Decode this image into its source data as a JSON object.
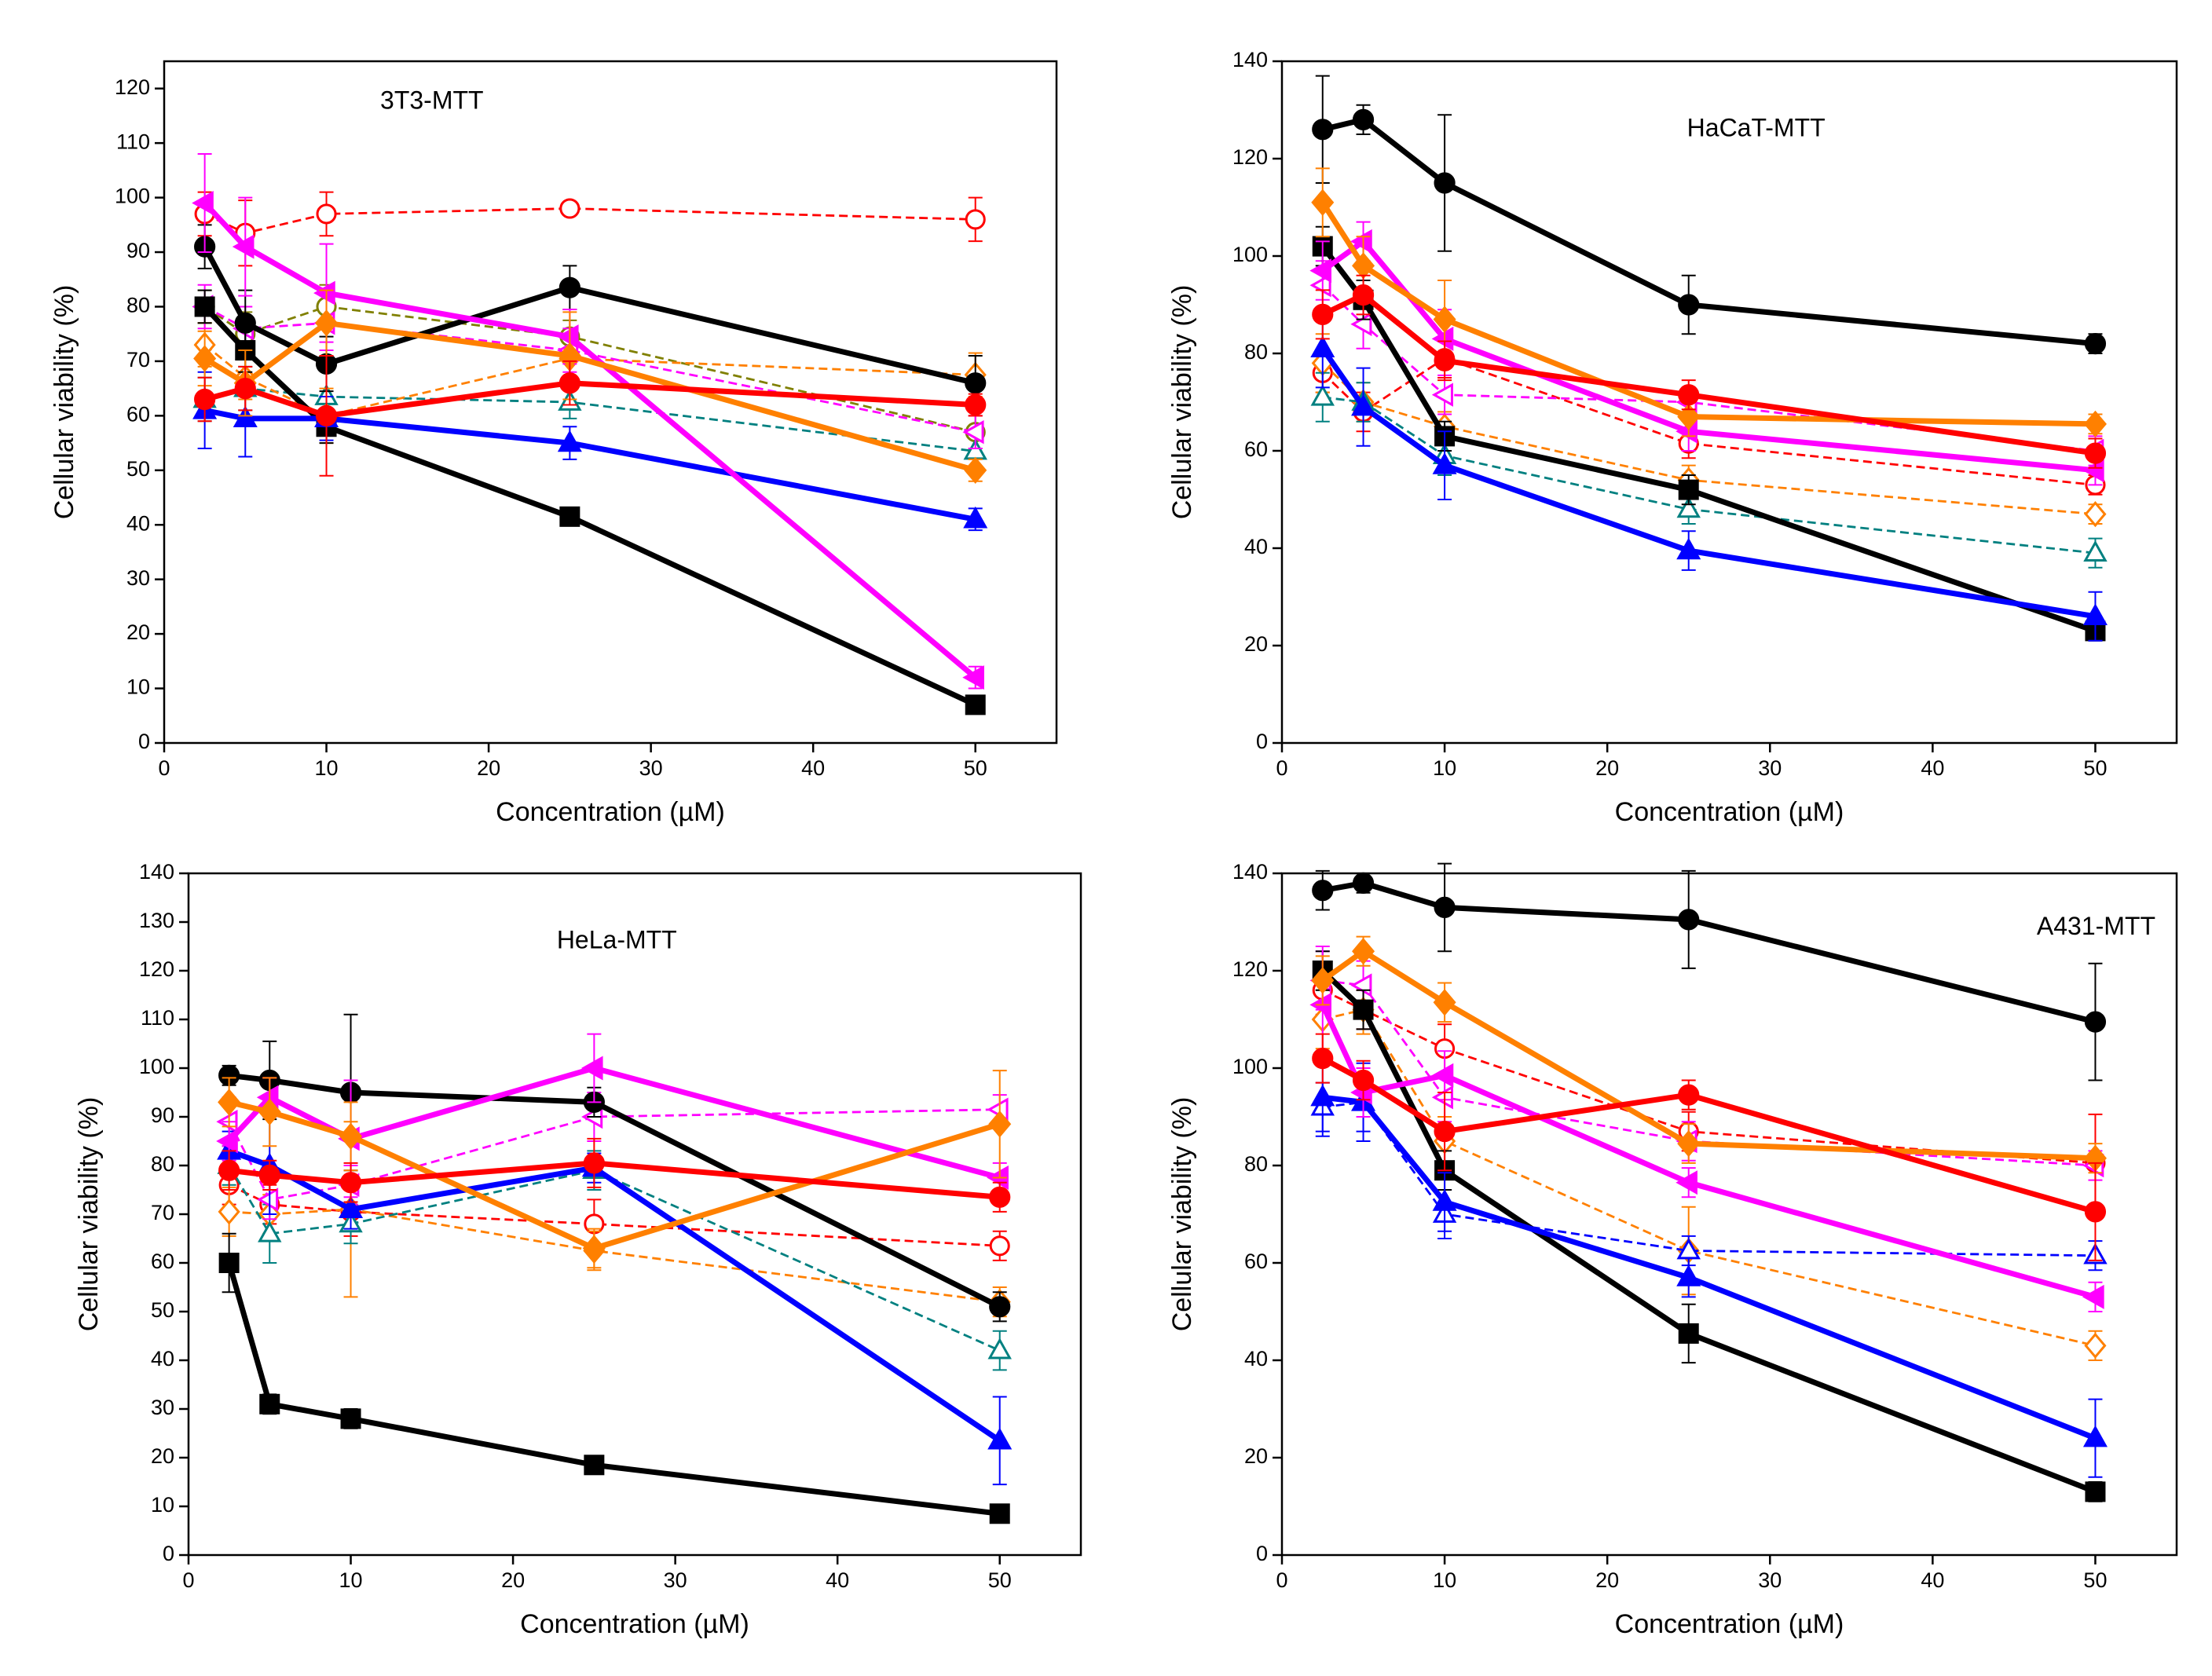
{
  "chart_data": [
    {
      "type": "line",
      "title": "3T3-MTT",
      "x_label": "Concentration (µM)",
      "y_label": "Cellular viability (%)",
      "x": [
        2.5,
        5,
        10,
        25,
        50
      ],
      "xlim": [
        0,
        55
      ],
      "xticks": [
        0,
        10,
        20,
        30,
        40,
        50
      ],
      "ylim": [
        0,
        125
      ],
      "yticks": [
        0,
        10,
        20,
        30,
        40,
        50,
        60,
        70,
        80,
        90,
        100,
        110,
        120
      ],
      "series": [
        {
          "color": "#ff0000",
          "marker": "circle",
          "filled": false,
          "dashed": true,
          "values": [
            97,
            93.5,
            97,
            98,
            96
          ],
          "errors": [
            4,
            6,
            4,
            1,
            4
          ]
        },
        {
          "color": "#808000",
          "marker": "circle",
          "filled": false,
          "dashed": true,
          "values": [
            80,
            75,
            80,
            74.5,
            57
          ],
          "errors": [
            3,
            4,
            4,
            3,
            3
          ]
        },
        {
          "color": "#008080",
          "marker": "triangle",
          "filled": false,
          "dashed": true,
          "values": [
            63,
            65,
            63.5,
            62.5,
            53.5
          ],
          "errors": [
            4,
            4,
            5,
            3,
            3
          ]
        },
        {
          "color": "#ff8000",
          "marker": "diamond",
          "filled": false,
          "dashed": true,
          "values": [
            73,
            67,
            60,
            70.5,
            67.5
          ],
          "errors": [
            4,
            4,
            5,
            4,
            4
          ]
        },
        {
          "color": "#ff00ff",
          "marker": "left-triangle",
          "filled": false,
          "dashed": true,
          "values": [
            80,
            76,
            77,
            72,
            57
          ],
          "errors": [
            4,
            4,
            5,
            4,
            3
          ]
        },
        {
          "color": "#000000",
          "marker": "square",
          "filled": true,
          "dashed": false,
          "values": [
            80,
            72,
            58,
            41.5,
            7
          ],
          "errors": [
            3,
            4,
            3,
            1,
            1
          ]
        },
        {
          "color": "#000000",
          "marker": "circle",
          "filled": true,
          "dashed": false,
          "values": [
            91,
            77,
            69.5,
            83.5,
            66
          ],
          "errors": [
            4,
            6,
            5,
            4,
            5
          ]
        },
        {
          "color": "#0000ff",
          "marker": "triangle",
          "filled": true,
          "dashed": false,
          "values": [
            61,
            59.5,
            59.5,
            55,
            41
          ],
          "errors": [
            7,
            7,
            4,
            3,
            2
          ]
        },
        {
          "color": "#ff00ff",
          "marker": "left-triangle",
          "filled": true,
          "dashed": false,
          "values": [
            99,
            91,
            82.5,
            74.5,
            12
          ],
          "errors": [
            9,
            9,
            9,
            5,
            2
          ]
        },
        {
          "color": "#ff8000",
          "marker": "diamond",
          "filled": true,
          "dashed": false,
          "values": [
            70.5,
            66,
            77,
            71,
            50
          ],
          "errors": [
            5,
            6,
            6,
            8,
            2
          ]
        },
        {
          "color": "#ff0000",
          "marker": "circle",
          "filled": true,
          "dashed": false,
          "values": [
            63,
            65,
            60,
            66,
            62
          ],
          "errors": [
            4,
            4,
            11,
            4,
            2
          ]
        }
      ]
    },
    {
      "type": "line",
      "title": "HaCaT-MTT",
      "x_label": "Concentration (µM)",
      "y_label": "Cellular viability (%)",
      "x": [
        2.5,
        5,
        10,
        25,
        50
      ],
      "xlim": [
        0,
        55
      ],
      "xticks": [
        0,
        10,
        20,
        30,
        40,
        50
      ],
      "ylim": [
        0,
        140
      ],
      "yticks": [
        0,
        20,
        40,
        60,
        80,
        100,
        120,
        140
      ],
      "series": [
        {
          "color": "#ff0000",
          "marker": "circle",
          "filled": false,
          "dashed": true,
          "values": [
            76,
            68,
            79,
            61.5,
            53
          ],
          "errors": [
            4,
            4,
            4,
            3,
            2
          ]
        },
        {
          "color": "#ff8000",
          "marker": "diamond",
          "filled": false,
          "dashed": true,
          "values": [
            78,
            70,
            65,
            54,
            47
          ],
          "errors": [
            6,
            4,
            3,
            3,
            2
          ]
        },
        {
          "color": "#008080",
          "marker": "triangle",
          "filled": false,
          "dashed": true,
          "values": [
            71,
            70,
            59,
            48,
            39
          ],
          "errors": [
            5,
            4,
            4,
            3,
            3
          ]
        },
        {
          "color": "#ff00ff",
          "marker": "left-triangle",
          "filled": false,
          "dashed": true,
          "values": [
            94,
            86,
            71.5,
            70,
            60
          ],
          "errors": [
            5,
            5,
            4,
            3,
            3
          ]
        },
        {
          "color": "#000000",
          "marker": "square",
          "filled": true,
          "dashed": false,
          "values": [
            102,
            91,
            63,
            52,
            23
          ],
          "errors": [
            4,
            4,
            3,
            3,
            2
          ]
        },
        {
          "color": "#000000",
          "marker": "circle",
          "filled": true,
          "dashed": false,
          "values": [
            126,
            128,
            115,
            90,
            82
          ],
          "errors": [
            11,
            3,
            14,
            6,
            2
          ]
        },
        {
          "color": "#0000ff",
          "marker": "triangle",
          "filled": true,
          "dashed": false,
          "values": [
            81,
            69,
            57,
            39.5,
            26
          ],
          "errors": [
            8,
            8,
            7,
            4,
            5
          ]
        },
        {
          "color": "#ff00ff",
          "marker": "left-triangle",
          "filled": true,
          "dashed": false,
          "values": [
            97,
            103,
            83,
            64,
            56
          ],
          "errors": [
            6,
            4,
            6,
            4,
            3
          ]
        },
        {
          "color": "#ff8000",
          "marker": "diamond",
          "filled": true,
          "dashed": false,
          "values": [
            111,
            98,
            87,
            67,
            65.5
          ],
          "errors": [
            7,
            6,
            8,
            4,
            2
          ]
        },
        {
          "color": "#ff0000",
          "marker": "circle",
          "filled": true,
          "dashed": false,
          "values": [
            88,
            92,
            78.5,
            71.5,
            59.5
          ],
          "errors": [
            5,
            4,
            4,
            3,
            3
          ]
        }
      ]
    },
    {
      "type": "line",
      "title": "HeLa-MTT",
      "x_label": "Concentration (µM)",
      "y_label": "Cellular viability (%)",
      "x": [
        2.5,
        5,
        10,
        25,
        50
      ],
      "xlim": [
        0,
        55
      ],
      "xticks": [
        0,
        10,
        20,
        30,
        40,
        50
      ],
      "ylim": [
        0,
        140
      ],
      "yticks": [
        0,
        10,
        20,
        30,
        40,
        50,
        60,
        70,
        80,
        90,
        100,
        110,
        120,
        130,
        140
      ],
      "series": [
        {
          "color": "#ff0000",
          "marker": "circle",
          "filled": false,
          "dashed": true,
          "values": [
            76,
            72,
            70.5,
            68,
            63.5
          ],
          "errors": [
            4,
            4,
            5,
            5,
            3
          ]
        },
        {
          "color": "#ff8000",
          "marker": "diamond",
          "filled": false,
          "dashed": true,
          "values": [
            70.5,
            70,
            71,
            62.5,
            52
          ],
          "errors": [
            5,
            4,
            18,
            4,
            3
          ]
        },
        {
          "color": "#008080",
          "marker": "triangle",
          "filled": false,
          "dashed": true,
          "values": [
            80,
            66,
            68,
            79,
            42
          ],
          "errors": [
            4,
            6,
            4,
            4,
            4
          ]
        },
        {
          "color": "#ff00ff",
          "marker": "left-triangle",
          "filled": false,
          "dashed": true,
          "values": [
            89,
            73,
            76,
            90,
            91.5
          ],
          "errors": [
            5,
            4,
            4,
            5,
            3
          ]
        },
        {
          "color": "#000000",
          "marker": "square",
          "filled": true,
          "dashed": false,
          "values": [
            60,
            31,
            28,
            18.5,
            8.5
          ],
          "errors": [
            6,
            2,
            2,
            1,
            1
          ]
        },
        {
          "color": "#000000",
          "marker": "circle",
          "filled": true,
          "dashed": false,
          "values": [
            98.5,
            97.5,
            95,
            93,
            51
          ],
          "errors": [
            2,
            8,
            16,
            3,
            3
          ]
        },
        {
          "color": "#0000ff",
          "marker": "triangle",
          "filled": true,
          "dashed": false,
          "values": [
            83,
            80,
            71,
            79.5,
            23.5
          ],
          "errors": [
            4,
            10,
            4,
            3,
            9
          ]
        },
        {
          "color": "#ff00ff",
          "marker": "left-triangle",
          "filled": true,
          "dashed": false,
          "values": [
            85,
            94,
            85.5,
            100,
            77.5
          ],
          "errors": [
            4,
            4,
            12,
            7,
            3
          ]
        },
        {
          "color": "#ff8000",
          "marker": "diamond",
          "filled": true,
          "dashed": false,
          "values": [
            93,
            91,
            86,
            63,
            88.5
          ],
          "errors": [
            5,
            7,
            7,
            4,
            11
          ]
        },
        {
          "color": "#ff0000",
          "marker": "circle",
          "filled": true,
          "dashed": false,
          "values": [
            79,
            78,
            76.5,
            80.5,
            73.5
          ],
          "errors": [
            4,
            3,
            4,
            5,
            3
          ]
        }
      ]
    },
    {
      "type": "line",
      "title": "A431-MTT",
      "x_label": "Concentration (µM)",
      "y_label": "Cellular viability (%)",
      "x": [
        2.5,
        5,
        10,
        25,
        50
      ],
      "xlim": [
        0,
        55
      ],
      "xticks": [
        0,
        10,
        20,
        30,
        40,
        50
      ],
      "ylim": [
        0,
        140
      ],
      "yticks": [
        0,
        20,
        40,
        60,
        80,
        100,
        120,
        140
      ],
      "series": [
        {
          "color": "#ff0000",
          "marker": "circle",
          "filled": false,
          "dashed": true,
          "values": [
            116,
            112,
            104,
            87,
            80.5
          ],
          "errors": [
            5,
            4,
            5,
            4,
            10
          ]
        },
        {
          "color": "#ff8000",
          "marker": "diamond",
          "filled": false,
          "dashed": true,
          "values": [
            110,
            112,
            85,
            62.5,
            43
          ],
          "errors": [
            6,
            5,
            5,
            9,
            3
          ]
        },
        {
          "color": "#0000ff",
          "marker": "triangle",
          "filled": false,
          "dashed": true,
          "values": [
            92,
            93,
            70,
            62.5,
            61.5
          ],
          "errors": [
            5,
            6,
            5,
            3,
            3
          ]
        },
        {
          "color": "#ff00ff",
          "marker": "left-triangle",
          "filled": false,
          "dashed": true,
          "values": [
            118,
            117,
            94,
            85,
            80
          ],
          "errors": [
            6,
            5,
            5,
            4,
            3
          ]
        },
        {
          "color": "#000000",
          "marker": "square",
          "filled": true,
          "dashed": false,
          "values": [
            120,
            112,
            79,
            45.5,
            13
          ],
          "errors": [
            4,
            4,
            4,
            6,
            2
          ]
        },
        {
          "color": "#000000",
          "marker": "circle",
          "filled": true,
          "dashed": false,
          "values": [
            136.5,
            138,
            133,
            130.5,
            109.5
          ],
          "errors": [
            4,
            2,
            9,
            10,
            12
          ]
        },
        {
          "color": "#0000ff",
          "marker": "triangle",
          "filled": true,
          "dashed": false,
          "values": [
            94,
            93,
            72.5,
            57,
            24
          ],
          "errors": [
            8,
            8,
            6,
            4,
            8
          ]
        },
        {
          "color": "#ff00ff",
          "marker": "left-triangle",
          "filled": true,
          "dashed": false,
          "values": [
            113,
            95,
            98.5,
            76.5,
            53
          ],
          "errors": [
            12,
            5,
            5,
            3,
            3
          ]
        },
        {
          "color": "#ff8000",
          "marker": "diamond",
          "filled": true,
          "dashed": false,
          "values": [
            118,
            124,
            113.5,
            84.5,
            81.5
          ],
          "errors": [
            5,
            3,
            4,
            4,
            3
          ]
        },
        {
          "color": "#ff0000",
          "marker": "circle",
          "filled": true,
          "dashed": false,
          "values": [
            102,
            97.5,
            87,
            94.5,
            70.5
          ],
          "errors": [
            5,
            4,
            8,
            3,
            10
          ]
        }
      ]
    }
  ]
}
